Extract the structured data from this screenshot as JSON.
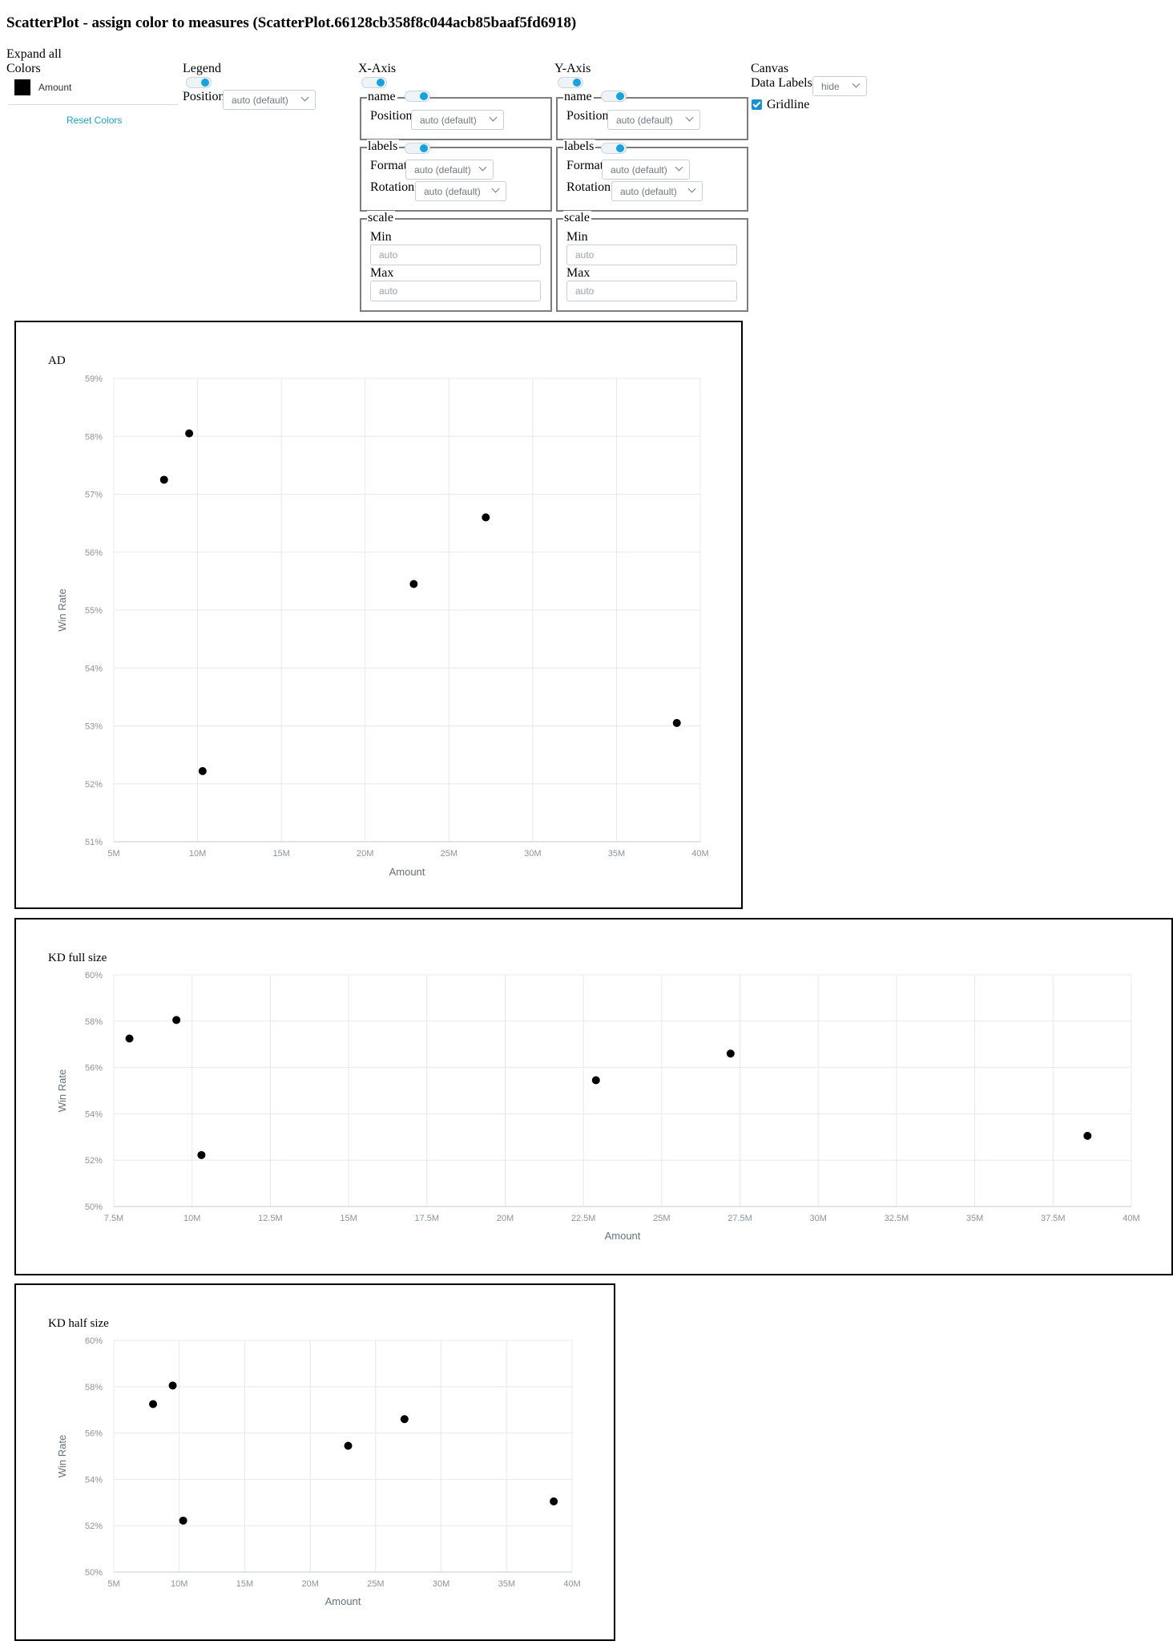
{
  "page": {
    "title": "ScatterPlot - assign color to measures (ScatterPlot.66128cb358f8c044acb85baaf5fd6918)"
  },
  "colors_panel": {
    "expand_all": "Expand all",
    "heading": "Colors",
    "items": [
      {
        "label": "Amount",
        "color": "#000000"
      }
    ],
    "reset_label": "Reset Colors"
  },
  "legend_panel": {
    "heading": "Legend",
    "enabled": true,
    "position_label": "Position",
    "position_value": "auto (default)"
  },
  "x_axis_panel": {
    "heading": "X-Axis",
    "enabled": true,
    "name_group": {
      "legend": "name",
      "enabled": true,
      "position_label": "Position",
      "position_value": "auto (default)"
    },
    "labels_group": {
      "legend": "labels",
      "enabled": true,
      "format_label": "Format",
      "format_value": "auto (default)",
      "rotation_label": "Rotation",
      "rotation_value": "auto (default)"
    },
    "scale_group": {
      "legend": "scale",
      "min_label": "Min",
      "min_placeholder": "auto",
      "max_label": "Max",
      "max_placeholder": "auto"
    }
  },
  "y_axis_panel": {
    "heading": "Y-Axis",
    "enabled": true,
    "name_group": {
      "legend": "name",
      "enabled": true,
      "position_label": "Position",
      "position_value": "auto (default)"
    },
    "labels_group": {
      "legend": "labels",
      "enabled": true,
      "format_label": "Format",
      "format_value": "auto (default)",
      "rotation_label": "Rotation",
      "rotation_value": "auto (default)"
    },
    "scale_group": {
      "legend": "scale",
      "min_label": "Min",
      "min_placeholder": "auto",
      "max_label": "Max",
      "max_placeholder": "auto"
    }
  },
  "canvas_panel": {
    "heading": "Canvas",
    "data_labels_label": "Data Labels",
    "data_labels_value": "hide",
    "gridline_label": "Gridline",
    "gridline_checked": true
  },
  "chart_data": [
    {
      "type": "scatter",
      "title": "AD",
      "xlabel": "Amount",
      "ylabel": "Win Rate",
      "xlim": [
        5000000,
        40000000
      ],
      "ylim": [
        0.51,
        0.59
      ],
      "xticks": [
        "5M",
        "10M",
        "15M",
        "20M",
        "25M",
        "30M",
        "35M",
        "40M"
      ],
      "yticks": [
        "51%",
        "52%",
        "53%",
        "54%",
        "55%",
        "56%",
        "57%",
        "58%",
        "59%"
      ],
      "grid": true,
      "marker_color": "#000000",
      "points": [
        {
          "x": 8000000,
          "y": 0.5725
        },
        {
          "x": 9500000,
          "y": 0.5805
        },
        {
          "x": 10300000,
          "y": 0.5222
        },
        {
          "x": 22900000,
          "y": 0.5545
        },
        {
          "x": 27200000,
          "y": 0.566
        },
        {
          "x": 38600000,
          "y": 0.5305
        }
      ]
    },
    {
      "type": "scatter",
      "title": "KD full size",
      "xlabel": "Amount",
      "ylabel": "Win Rate",
      "xlim": [
        7500000,
        40000000
      ],
      "ylim": [
        0.5,
        0.6
      ],
      "xticks": [
        "7.5M",
        "10M",
        "12.5M",
        "15M",
        "17.5M",
        "20M",
        "22.5M",
        "25M",
        "27.5M",
        "30M",
        "32.5M",
        "35M",
        "37.5M",
        "40M"
      ],
      "yticks": [
        "50%",
        "52%",
        "54%",
        "56%",
        "58%",
        "60%"
      ],
      "grid": true,
      "marker_color": "#000000",
      "points": [
        {
          "x": 8000000,
          "y": 0.5725
        },
        {
          "x": 9500000,
          "y": 0.5805
        },
        {
          "x": 10300000,
          "y": 0.5222
        },
        {
          "x": 22900000,
          "y": 0.5545
        },
        {
          "x": 27200000,
          "y": 0.566
        },
        {
          "x": 38600000,
          "y": 0.5305
        }
      ]
    },
    {
      "type": "scatter",
      "title": "KD half size",
      "xlabel": "Amount",
      "ylabel": "Win Rate",
      "xlim": [
        5000000,
        40000000
      ],
      "ylim": [
        0.5,
        0.6
      ],
      "xticks": [
        "5M",
        "10M",
        "15M",
        "20M",
        "25M",
        "30M",
        "35M",
        "40M"
      ],
      "yticks": [
        "50%",
        "52%",
        "54%",
        "56%",
        "58%",
        "60%"
      ],
      "grid": true,
      "marker_color": "#000000",
      "points": [
        {
          "x": 8000000,
          "y": 0.5725
        },
        {
          "x": 9500000,
          "y": 0.5805
        },
        {
          "x": 10300000,
          "y": 0.5222
        },
        {
          "x": 22900000,
          "y": 0.5545
        },
        {
          "x": 27200000,
          "y": 0.566
        },
        {
          "x": 38600000,
          "y": 0.5305
        }
      ]
    }
  ]
}
